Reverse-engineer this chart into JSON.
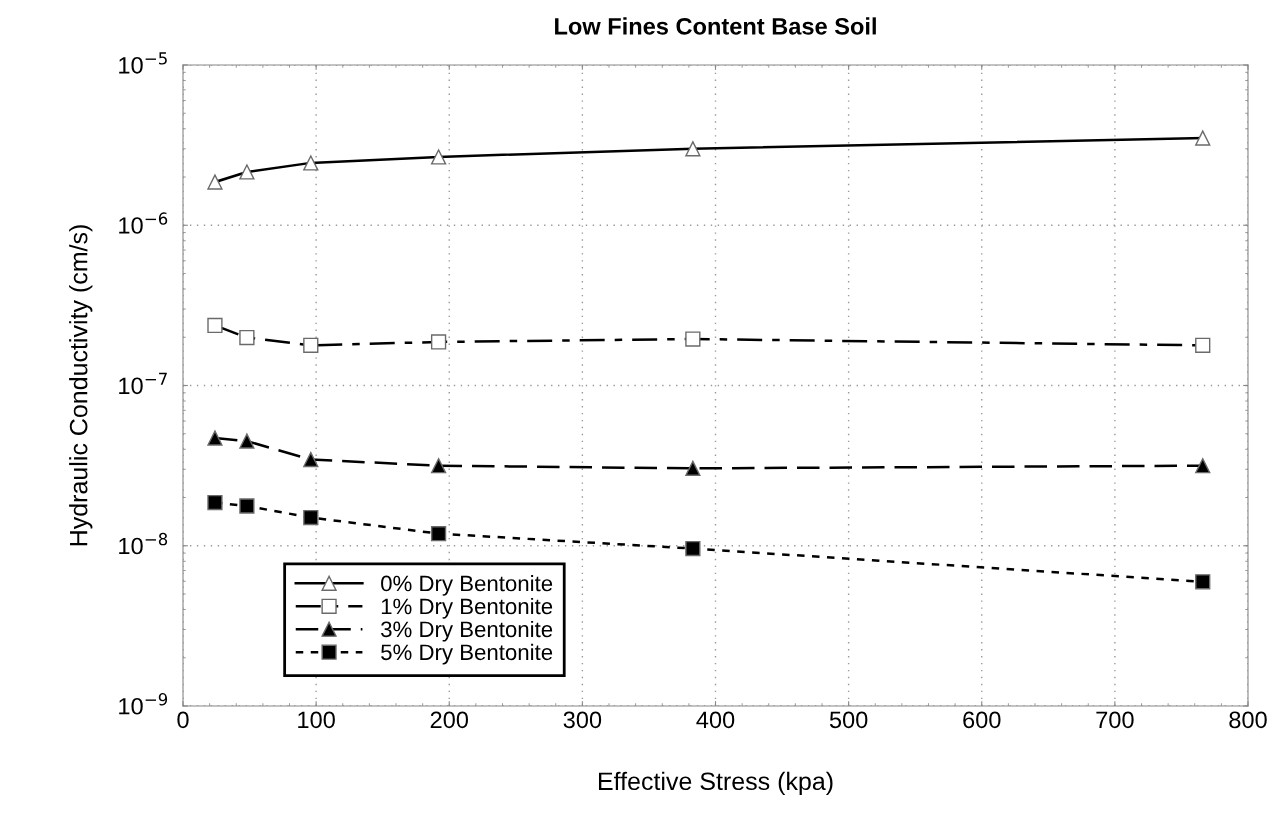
{
  "chart_data": {
    "type": "line",
    "title": "Low Fines Content Base Soil",
    "xlabel": "Effective Stress (kpa)",
    "ylabel": "Hydraulic Conductivity (cm/s)",
    "x": [
      24,
      48,
      96,
      192,
      383,
      766
    ],
    "series": [
      {
        "name": "0% Dry Bentonite",
        "color": "#ffffff",
        "marker": "triangle",
        "line_style": "solid",
        "values": [
          1.86e-06,
          2.15e-06,
          2.45e-06,
          2.67e-06,
          3e-06,
          3.5e-06
        ]
      },
      {
        "name": "1% Dry Bentonite",
        "color": "#ffffff",
        "marker": "square",
        "line_style": "dashdot",
        "values": [
          2.37e-07,
          1.99e-07,
          1.78e-07,
          1.87e-07,
          1.95e-07,
          1.78e-07
        ]
      },
      {
        "name": "3% Dry Bentonite",
        "color": "#000000",
        "marker": "triangle",
        "line_style": "dashed",
        "values": [
          4.7e-08,
          4.5e-08,
          3.45e-08,
          3.16e-08,
          3.04e-08,
          3.16e-08
        ]
      },
      {
        "name": "5% Dry Bentonite",
        "color": "#000000",
        "marker": "square",
        "line_style": "dotted",
        "values": [
          1.86e-08,
          1.77e-08,
          1.5e-08,
          1.19e-08,
          9.6e-09,
          5.96e-09
        ]
      }
    ],
    "log": "y",
    "xlim": [
      0,
      800
    ],
    "xticks": [
      0,
      100,
      200,
      300,
      400,
      500,
      600,
      700,
      800
    ],
    "ylim": [
      1e-09,
      1e-05
    ],
    "yticks": [
      {
        "value": 1e-09,
        "label": "10$^{−9}$"
      },
      {
        "value": 1e-08,
        "label": "10$^{−8}$"
      },
      {
        "value": 1e-07,
        "label": "10$^{−7}$"
      },
      {
        "value": 1e-06,
        "label": "10$^{−6}$"
      },
      {
        "value": 1e-05,
        "label": "10$^{−5}$"
      }
    ],
    "grid": true,
    "legend": "bottom left"
  }
}
